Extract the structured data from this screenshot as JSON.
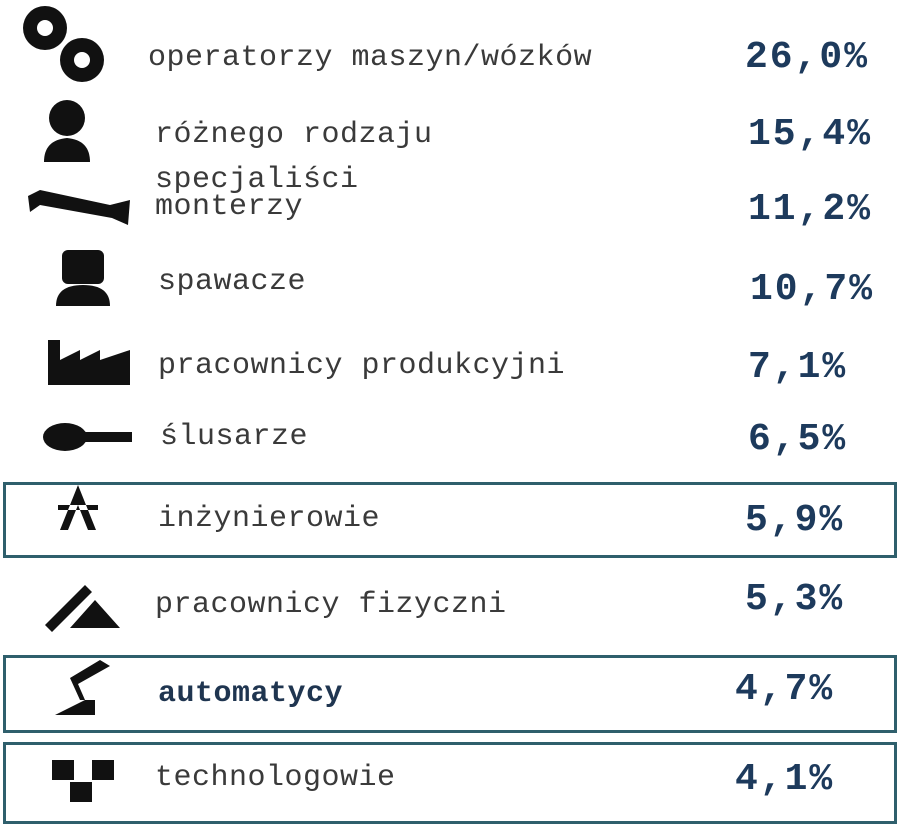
{
  "items": [
    {
      "label": [
        "operatorzy maszyn/wózków"
      ],
      "value": "26,0%"
    },
    {
      "label": [
        "różnego rodzaju",
        "specjaliści"
      ],
      "value": "15,4%"
    },
    {
      "label": [
        "monterzy"
      ],
      "value": "11,2%"
    },
    {
      "label": [
        "spawacze"
      ],
      "value": "10,7%"
    },
    {
      "label": [
        "pracownicy produkcyjni"
      ],
      "value": "7,1%"
    },
    {
      "label": [
        "ślusarze"
      ],
      "value": "6,5%"
    },
    {
      "label": [
        "inżynierowie"
      ],
      "value": "5,9%"
    },
    {
      "label": [
        "pracownicy fizyczni"
      ],
      "value": "5,3%"
    },
    {
      "label": [
        "automatycy"
      ],
      "value": "4,7%"
    },
    {
      "label": [
        "technologowie"
      ],
      "value": "4,1%"
    }
  ]
}
